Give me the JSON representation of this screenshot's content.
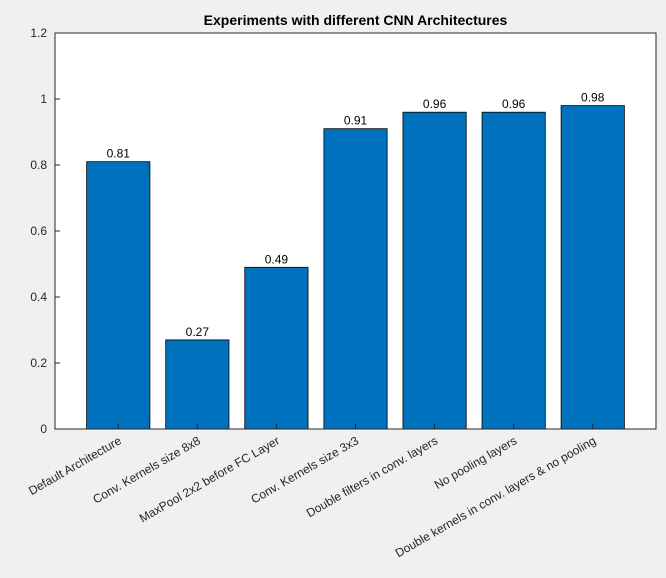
{
  "chart_data": {
    "type": "bar",
    "title": "Experiments with different CNN Architectures",
    "xlabel": "",
    "ylabel": "",
    "categories": [
      "Default Architecture",
      "Conv. Kernels size 8x8",
      "MaxPool 2x2 before FC Layer",
      "Conv. Kernels size 3x3",
      "Double filters in conv. layers",
      "No pooling layers",
      "Double kernels in conv. layers & no pooling"
    ],
    "values": [
      0.81,
      0.27,
      0.49,
      0.91,
      0.96,
      0.96,
      0.98
    ],
    "data_labels": [
      "0.81",
      "0.27",
      "0.49",
      "0.91",
      "0.96",
      "0.96",
      "0.98"
    ],
    "ylim": [
      0,
      1.2
    ],
    "yticks": [
      0,
      0.2,
      0.4,
      0.6,
      0.8,
      1,
      1.2
    ],
    "ytick_labels": [
      "0",
      "0.2",
      "0.4",
      "0.6",
      "0.8",
      "1",
      "1.2"
    ],
    "bar_color": "#0072bd",
    "grid": false,
    "legend": "none"
  }
}
